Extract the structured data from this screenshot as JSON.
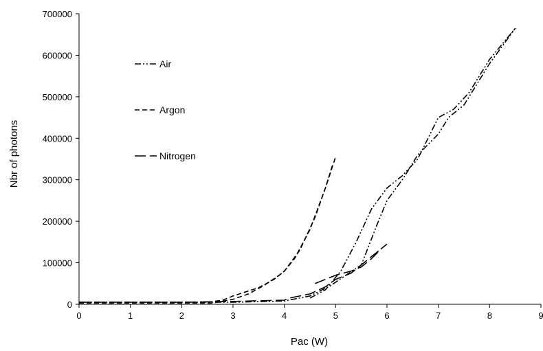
{
  "chart_data": {
    "type": "line",
    "title": "",
    "xlabel": "Pac (W)",
    "ylabel": "Nbr of photons",
    "xlim": [
      0,
      9
    ],
    "ylim": [
      0,
      700000
    ],
    "x_ticks": [
      0,
      1,
      2,
      3,
      4,
      5,
      6,
      7,
      8,
      9
    ],
    "y_ticks": [
      0,
      100000,
      200000,
      300000,
      400000,
      500000,
      600000,
      700000
    ],
    "grid": false,
    "legend_position": "upper-left",
    "series": [
      {
        "name": "Air",
        "dash": "dash-dot-dot",
        "color": "#000000",
        "traces": [
          [
            [
              0,
              5000
            ],
            [
              1,
              5000
            ],
            [
              2,
              5000
            ],
            [
              3,
              5000
            ],
            [
              4,
              8000
            ],
            [
              4.5,
              20000
            ],
            [
              4.9,
              45000
            ],
            [
              5.2,
              70000
            ],
            [
              5.5,
              95000
            ],
            [
              5.8,
              190000
            ],
            [
              6,
              250000
            ],
            [
              6.3,
              300000
            ],
            [
              6.6,
              360000
            ],
            [
              7,
              410000
            ],
            [
              7.2,
              450000
            ],
            [
              7.5,
              480000
            ],
            [
              8,
              580000
            ],
            [
              8.5,
              665000
            ]
          ],
          [
            [
              4.5,
              15000
            ],
            [
              4.8,
              35000
            ],
            [
              5.1,
              80000
            ],
            [
              5.4,
              150000
            ],
            [
              5.7,
              230000
            ],
            [
              6,
              280000
            ],
            [
              6.3,
              310000
            ],
            [
              6.6,
              350000
            ],
            [
              7,
              450000
            ],
            [
              7.3,
              470000
            ],
            [
              7.6,
              510000
            ],
            [
              8,
              590000
            ],
            [
              8.5,
              665000
            ]
          ]
        ]
      },
      {
        "name": "Argon",
        "dash": "dash",
        "color": "#000000",
        "traces": [
          [
            [
              0,
              5000
            ],
            [
              1,
              5000
            ],
            [
              2,
              5000
            ],
            [
              2.5,
              5000
            ],
            [
              2.8,
              10000
            ],
            [
              3,
              20000
            ],
            [
              3.2,
              28000
            ],
            [
              3.5,
              40000
            ],
            [
              3.8,
              60000
            ],
            [
              4,
              80000
            ],
            [
              4.2,
              110000
            ],
            [
              4.5,
              180000
            ],
            [
              4.8,
              280000
            ],
            [
              5,
              355000
            ]
          ],
          [
            [
              0,
              3000
            ],
            [
              1,
              3000
            ],
            [
              2,
              3000
            ],
            [
              2.6,
              3000
            ],
            [
              3,
              12000
            ],
            [
              3.3,
              25000
            ],
            [
              3.6,
              45000
            ],
            [
              3.9,
              70000
            ],
            [
              4,
              80000
            ],
            [
              4.3,
              130000
            ],
            [
              4.6,
              210000
            ],
            [
              4.8,
              280000
            ],
            [
              4.95,
              340000
            ]
          ]
        ]
      },
      {
        "name": "Nitrogen",
        "dash": "long-dash",
        "color": "#000000",
        "traces": [
          [
            [
              0,
              5000
            ],
            [
              1,
              5000
            ],
            [
              2,
              5000
            ],
            [
              3,
              7000
            ],
            [
              4,
              10000
            ],
            [
              4.1,
              15000
            ],
            [
              4.5,
              25000
            ],
            [
              4.8,
              42000
            ],
            [
              5,
              60000
            ],
            [
              5.3,
              75000
            ],
            [
              5.5,
              95000
            ],
            [
              5.7,
              115000
            ],
            [
              6,
              145000
            ]
          ],
          [
            [
              4.6,
              50000
            ],
            [
              5,
              70000
            ],
            [
              5.3,
              80000
            ],
            [
              5.5,
              90000
            ],
            [
              5.7,
              110000
            ],
            [
              5.9,
              135000
            ]
          ]
        ]
      }
    ]
  }
}
